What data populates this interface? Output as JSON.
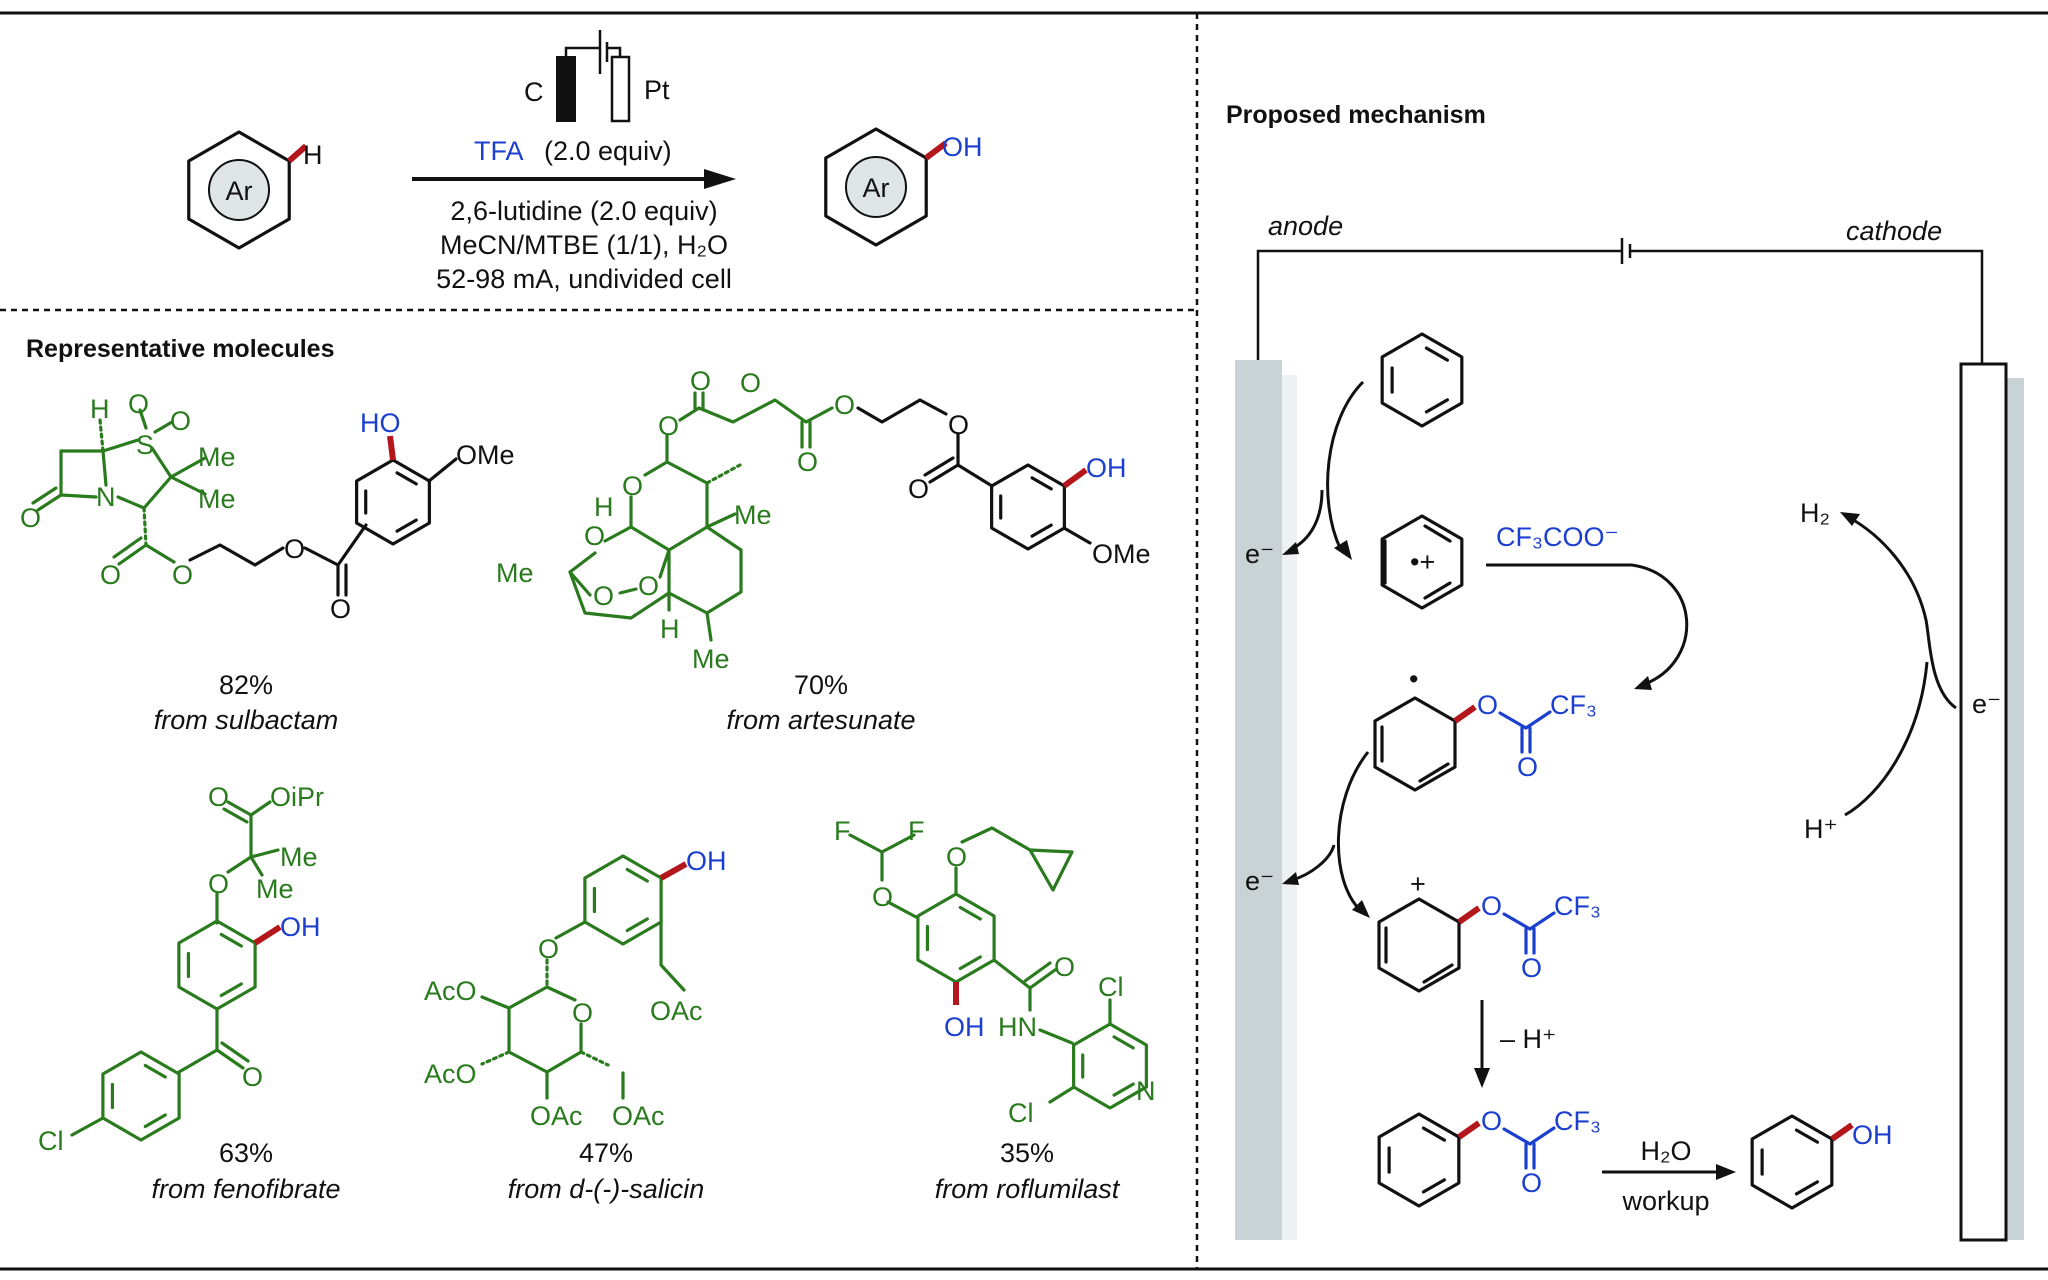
{
  "colors": {
    "ink": "#111111",
    "drug_scaffold": "#2a7a1e",
    "new_oxygen": "#1b3fce",
    "new_bond": "#b3161b",
    "anode": "#c9d3d5"
  },
  "scheme": {
    "substrate_ring_label": "Ar",
    "substrate_h": "H",
    "electrode_anode": "C",
    "electrode_cathode": "Pt",
    "reagent_tfa": "TFA",
    "reagent_tfa_amount": "(2.0 equiv)",
    "conditions": [
      "2,6-lutidine (2.0 equiv)",
      "MeCN/MTBE (1/1), H₂O",
      "52-98 mA, undivided cell"
    ],
    "product_ring_label": "Ar",
    "product_oh": "OH"
  },
  "representative": {
    "title": "Representative molecules",
    "molecules": [
      {
        "yield": "82%",
        "source": "from sulbactam",
        "labels": [
          "H",
          "O",
          "S",
          "O",
          "Me",
          "Me",
          "N",
          "O",
          "O",
          "O",
          "O",
          "O",
          "HO",
          "OMe"
        ]
      },
      {
        "yield": "70%",
        "source": "from artesunate",
        "labels": [
          "O",
          "O",
          "O",
          "O",
          "O",
          "O",
          "O",
          "OH",
          "OMe",
          "O",
          "H",
          "O",
          "Me",
          "Me",
          "O",
          "O",
          "H",
          "Me"
        ]
      },
      {
        "yield": "63%",
        "source": "from fenofibrate",
        "labels": [
          "O",
          "OiPr",
          "Me",
          "Me",
          "O",
          "OH",
          "O",
          "Cl"
        ]
      },
      {
        "yield": "47%",
        "source": "from d-(-)-salicin",
        "labels": [
          "OH",
          "O",
          "OAc",
          "AcO",
          "O",
          "AcO",
          "OAc",
          "OAc"
        ]
      },
      {
        "yield": "35%",
        "source": "from roflumilast",
        "labels": [
          "F",
          "F",
          "O",
          "O",
          "O",
          "OH",
          "HN",
          "Cl",
          "N",
          "Cl"
        ]
      }
    ]
  },
  "mechanism": {
    "title": "Proposed mechanism",
    "anode_label": "anode",
    "cathode_label": "cathode",
    "electron": "e⁻",
    "radical_cation": "•+",
    "nucleophile": "CF₃COO⁻",
    "ester_o": "O",
    "ester_cf3": "CF₃",
    "ester_carbonyl_o": "O",
    "radical_dot": "•",
    "cation_plus": "+",
    "deprotonation": "– H⁺",
    "hydrolysis_reagent": "H₂O",
    "hydrolysis_step": "workup",
    "phenol_oh": "OH",
    "h2": "H₂",
    "h_plus": "H⁺"
  }
}
